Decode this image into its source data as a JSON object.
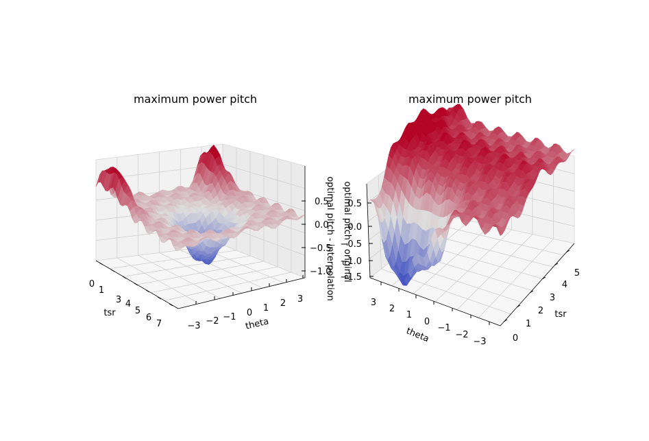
{
  "chart_data": [
    {
      "type": "surface",
      "title": "maximum power pitch",
      "xlabel": "tsr",
      "ylabel": "theta",
      "zlabel": "optimal pitch - interpolation",
      "x_ticks": [
        "0",
        "1",
        "3",
        "4",
        "5",
        "6",
        "7"
      ],
      "y_ticks": [
        "−3",
        "−2",
        "−1",
        "0",
        "1",
        "2",
        "3"
      ],
      "z_ticks": [
        "0.5",
        "0.0",
        "−0.5",
        "−1.0"
      ],
      "xlim": [
        0,
        7
      ],
      "ylim": [
        -3,
        3
      ],
      "zlim": [
        -1.6,
        1.2
      ],
      "grid": true,
      "colormap": "coolwarm",
      "colors": {
        "low": "#3b4cc0",
        "mid": "#dddddd",
        "high": "#b40426"
      }
    },
    {
      "type": "surface",
      "title": "maximum power pitch",
      "xlabel": "tsr",
      "ylabel": "theta",
      "zlabel": "optimal pitch - original",
      "x_ticks": [
        "0",
        "1",
        "2",
        "3",
        "4",
        "5"
      ],
      "y_ticks": [
        "3",
        "2",
        "1",
        "0",
        "−1",
        "−2",
        "−3"
      ],
      "z_ticks": [
        "0.5",
        "0.0",
        "−0.5",
        "−1.0",
        "−1.5"
      ],
      "xlim": [
        0,
        5.5
      ],
      "ylim": [
        -3,
        3
      ],
      "zlim": [
        -1.7,
        1.0
      ],
      "grid": true,
      "colormap": "coolwarm",
      "colors": {
        "low": "#3b4cc0",
        "mid": "#dddddd",
        "high": "#b40426"
      }
    }
  ]
}
